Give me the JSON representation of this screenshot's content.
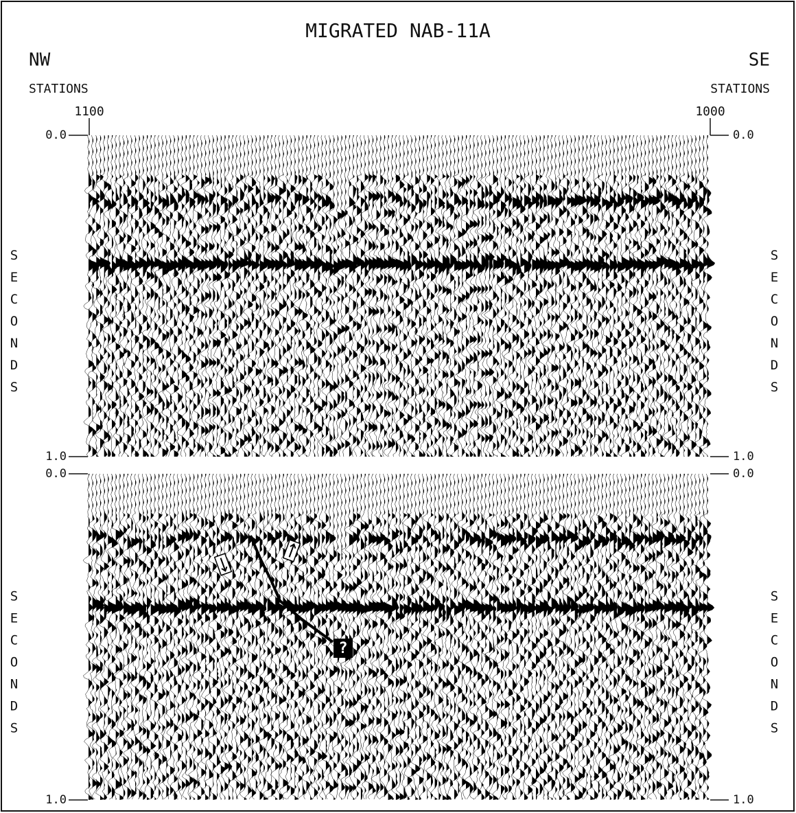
{
  "header": {
    "title": "MIGRATED NAB-11A",
    "left_direction": "NW",
    "right_direction": "SE",
    "left_label": "STATIONS",
    "right_label": "STATIONS",
    "left_station": "1100",
    "right_station": "1000"
  },
  "panels": [
    {
      "top_time": "0.0",
      "bottom_time": "1.0",
      "axis_label": "SECONDS"
    },
    {
      "top_time": "0.0",
      "bottom_time": "1.0",
      "axis_label": "SECONDS",
      "annotation": "?"
    }
  ]
}
